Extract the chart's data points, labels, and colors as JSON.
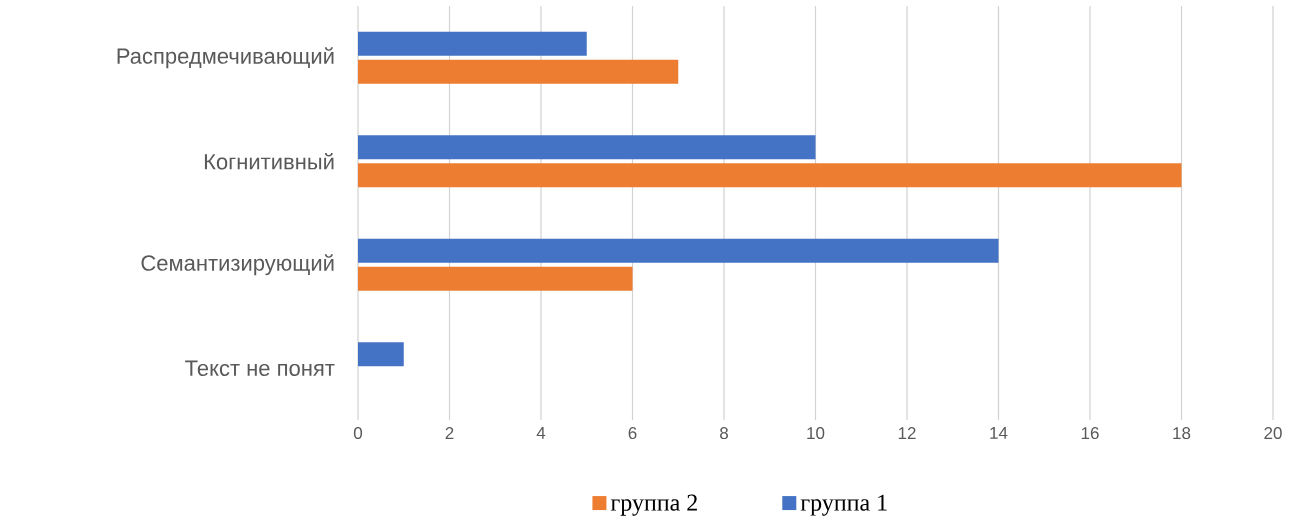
{
  "chart_data": {
    "type": "bar",
    "orientation": "horizontal",
    "categories": [
      "Распредмечивающий",
      "Когнитивный",
      "Семантизирующий",
      "Текст не понят"
    ],
    "series": [
      {
        "name": "группа 2",
        "color": "#ed7d31",
        "values": [
          7,
          18,
          6,
          0
        ]
      },
      {
        "name": "группа 1",
        "color": "#4472c4",
        "values": [
          5,
          10,
          14,
          1
        ]
      }
    ],
    "xlim": [
      0,
      20
    ],
    "xticks": [
      0,
      2,
      4,
      6,
      8,
      10,
      12,
      14,
      16,
      18,
      20
    ],
    "grid": "x",
    "legend": "bottom"
  }
}
